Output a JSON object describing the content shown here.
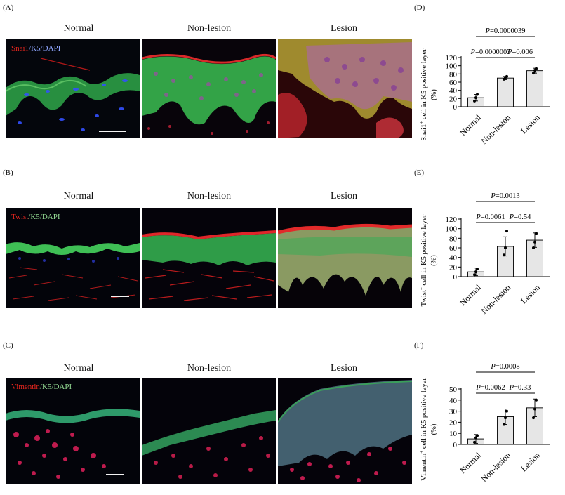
{
  "rows": [
    {
      "panel_label": "(A)",
      "chart_label": "(D)",
      "columns": [
        "Normal",
        "Non-lesion",
        "Lesion"
      ],
      "stain": {
        "marker": "Snai1",
        "rest": "/K5/DAPI",
        "marker_color": "#e8261e",
        "k5_color": "#3fd45a",
        "dapi_color": "#6f8cff"
      },
      "chart_data": {
        "type": "bar",
        "categories": [
          "Normal",
          "Non-lesion",
          "Lesion"
        ],
        "values": [
          22,
          70,
          88
        ],
        "errors": [
          8,
          4,
          6
        ],
        "points": [
          [
            14,
            22,
            30
          ],
          [
            67,
            71,
            74
          ],
          [
            82,
            89,
            93
          ]
        ],
        "ylim": [
          0,
          120
        ],
        "yticks": [
          0,
          20,
          40,
          60,
          80,
          100,
          120
        ],
        "ylabel_line1": "Snai1",
        "ylabel_sup": "+",
        "ylabel_rest": " cell  in K5 positive layer",
        "ylabel_line2": "(%)",
        "comparisons": [
          {
            "from": 0,
            "to": 2,
            "label": "=0.0000039",
            "level": 1
          },
          {
            "from": 0,
            "to": 1,
            "label": "=0.0000003",
            "level": 0
          },
          {
            "from": 1,
            "to": 2,
            "label": "=0.006",
            "level": 0
          }
        ]
      }
    },
    {
      "panel_label": "(B)",
      "chart_label": "(E)",
      "columns": [
        "Normal",
        "Non-lesion",
        "Lesion"
      ],
      "stain": {
        "marker": "Twist",
        "rest": "/K5/DAPI",
        "marker_color": "#e8261e",
        "k5_color": "#3fd45a",
        "dapi_color": "#6f8cff"
      },
      "chart_data": {
        "type": "bar",
        "categories": [
          "Normal",
          "Non-lesion",
          "Lesion"
        ],
        "values": [
          10,
          63,
          76
        ],
        "errors": [
          8,
          20,
          15
        ],
        "points": [
          [
            4,
            10,
            16
          ],
          [
            45,
            60,
            95
          ],
          [
            60,
            72,
            90
          ]
        ],
        "ylim": [
          0,
          120
        ],
        "yticks": [
          0,
          20,
          40,
          60,
          80,
          100,
          120
        ],
        "ylabel_line1": "Twist",
        "ylabel_sup": "+",
        "ylabel_rest": " cell  in K5 positive layer",
        "ylabel_line2": "(%)",
        "comparisons": [
          {
            "from": 0,
            "to": 2,
            "label": "=0.0013",
            "level": 1
          },
          {
            "from": 0,
            "to": 1,
            "label": "=0.0061",
            "level": 0
          },
          {
            "from": 1,
            "to": 2,
            "label": "=0.54",
            "level": 0
          }
        ]
      }
    },
    {
      "panel_label": "(C)",
      "chart_label": "(F)",
      "columns": [
        "Normal",
        "Non-lesion",
        "Lesion"
      ],
      "stain": {
        "marker": "Vimentin",
        "rest": "/K5/DAPI",
        "marker_color": "#e8261e",
        "k5_color": "#3fd45a",
        "dapi_color": "#6f8cff"
      },
      "chart_data": {
        "type": "bar",
        "categories": [
          "Normal",
          "Non-lesion",
          "Lesion"
        ],
        "values": [
          5,
          25,
          33
        ],
        "errors": [
          4,
          7,
          8
        ],
        "points": [
          [
            2,
            6,
            8
          ],
          [
            18,
            24,
            30
          ],
          [
            24,
            32,
            40
          ]
        ],
        "ylim": [
          0,
          50
        ],
        "yticks": [
          0,
          10,
          20,
          30,
          40,
          50
        ],
        "ylabel_line1": "Vimentin",
        "ylabel_sup": "+",
        "ylabel_rest": " cell  in K5 positive layer",
        "ylabel_line2": "(%)",
        "comparisons": [
          {
            "from": 0,
            "to": 2,
            "label": "=0.0008",
            "level": 1
          },
          {
            "from": 0,
            "to": 1,
            "label": "=0.0062",
            "level": 0
          },
          {
            "from": 1,
            "to": 2,
            "label": "=0.33",
            "level": 0
          }
        ]
      }
    }
  ],
  "p_symbol": "P"
}
